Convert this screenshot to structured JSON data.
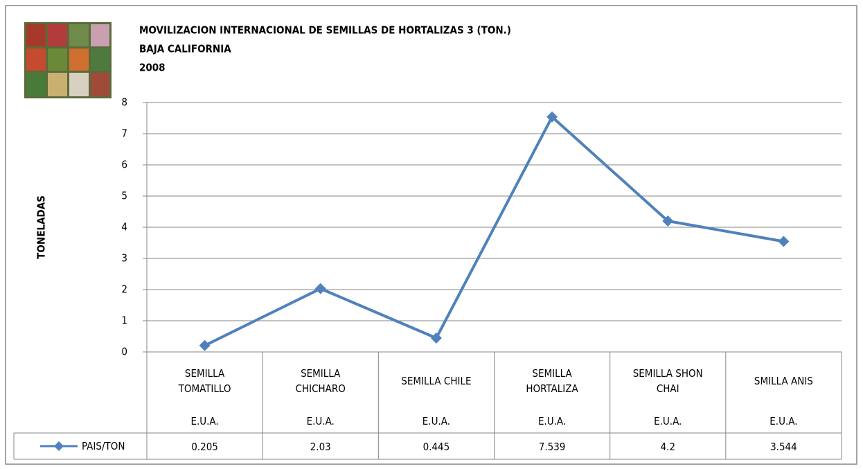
{
  "chart_data": {
    "type": "line",
    "title": "MOVILIZACION INTERNACIONAL DE SEMILLAS DE HORTALIZAS 3 (TON.)",
    "subtitle": "BAJA CALIFORNIA",
    "year": "2008",
    "y_label": "TONELADAS",
    "categories": [
      "SEMILLA TOMATILLO",
      "SEMILLA CHICHARO",
      "SEMILLA CHILE",
      "SEMILLA HORTALIZA",
      "SEMILLA SHON CHAI",
      "SMILLA ANIS"
    ],
    "category_groups": [
      "E.U.A.",
      "E.U.A.",
      "E.U.A.",
      "E.U.A.",
      "E.U.A.",
      "E.U.A."
    ],
    "series": [
      {
        "name": "PAIS/TON",
        "color": "#4f81bd",
        "values": [
          0.205,
          2.03,
          0.445,
          7.539,
          4.2,
          3.544
        ]
      }
    ],
    "ylim": [
      0,
      8
    ],
    "yticks": [
      0,
      1,
      2,
      3,
      4,
      5,
      6,
      7,
      8
    ],
    "grid": true
  }
}
